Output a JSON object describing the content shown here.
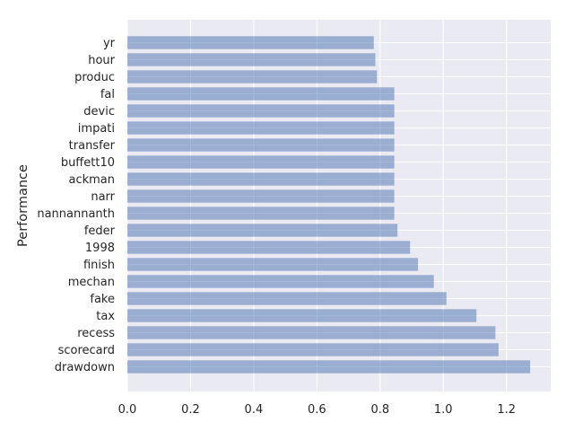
{
  "chart_data": {
    "type": "bar",
    "orientation": "horizontal",
    "title": "",
    "xlabel": "",
    "ylabel": "Performance",
    "categories": [
      "drawdown",
      "scorecard",
      "recess",
      "tax",
      "fake",
      "mechan",
      "finish",
      "1998",
      "feder",
      "nannannanth",
      "narr",
      "ackman",
      "buffett10",
      "transfer",
      "impati",
      "devic",
      "fal",
      "produc",
      "hour",
      "yr"
    ],
    "values": [
      1.275,
      1.175,
      1.165,
      1.105,
      1.01,
      0.97,
      0.92,
      0.895,
      0.855,
      0.845,
      0.845,
      0.845,
      0.845,
      0.845,
      0.845,
      0.845,
      0.845,
      0.79,
      0.785,
      0.78
    ],
    "xlim": [
      0,
      1.34
    ],
    "xticks": [
      "0.0",
      "0.2",
      "0.4",
      "0.6",
      "0.8",
      "1.0",
      "1.2"
    ],
    "grid": true,
    "colors": {
      "bar": "#4c72b0",
      "bar_opacity": 0.5,
      "plot_background": "#eaeaf2",
      "grid": "#ffffff",
      "text": "#262626"
    }
  }
}
